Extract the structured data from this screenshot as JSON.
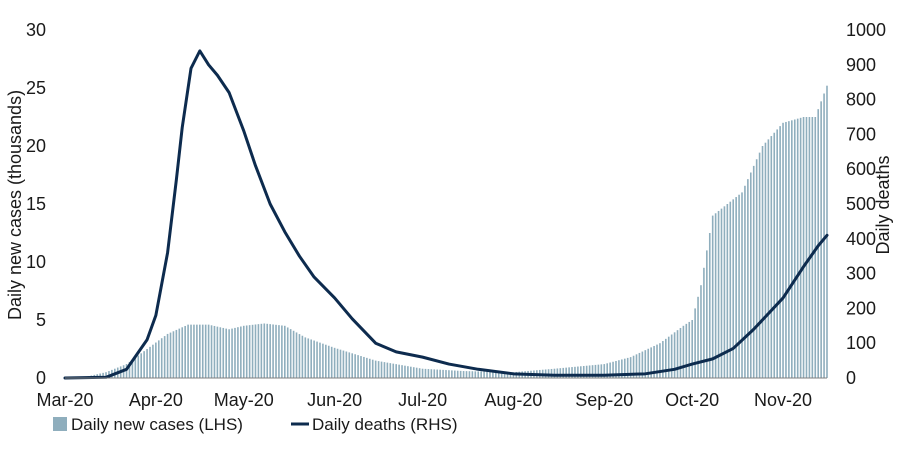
{
  "chart_data": {
    "type": "bar+line",
    "title": "",
    "x_tick_labels": [
      "Mar-20",
      "Apr-20",
      "May-20",
      "Jun-20",
      "Jul-20",
      "Aug-20",
      "Sep-20",
      "Oct-20",
      "Nov-20"
    ],
    "y_left": {
      "label": "Daily new cases (thousands)",
      "range": [
        0,
        30
      ],
      "ticks": [
        "0",
        "5",
        "10",
        "15",
        "20",
        "25",
        "30"
      ]
    },
    "y_right": {
      "label": "Daily deaths",
      "range": [
        0,
        1000
      ],
      "ticks": [
        "0",
        "100",
        "200",
        "300",
        "400",
        "500",
        "600",
        "700",
        "800",
        "900",
        "1000"
      ]
    },
    "grid": false,
    "legend_placement": "bottom",
    "series": [
      {
        "name": "Daily new cases (LHS)",
        "kind": "bar",
        "axis": "left",
        "color": "#8faebd",
        "points": [
          [
            "2020-03-01",
            0.0
          ],
          [
            "2020-03-08",
            0.1
          ],
          [
            "2020-03-15",
            0.5
          ],
          [
            "2020-03-22",
            1.2
          ],
          [
            "2020-03-29",
            2.5
          ],
          [
            "2020-04-05",
            3.8
          ],
          [
            "2020-04-12",
            4.6
          ],
          [
            "2020-04-19",
            4.6
          ],
          [
            "2020-04-26",
            4.2
          ],
          [
            "2020-05-01",
            4.5
          ],
          [
            "2020-05-08",
            4.7
          ],
          [
            "2020-05-15",
            4.5
          ],
          [
            "2020-05-22",
            3.5
          ],
          [
            "2020-06-01",
            2.6
          ],
          [
            "2020-06-15",
            1.5
          ],
          [
            "2020-07-01",
            0.8
          ],
          [
            "2020-07-15",
            0.6
          ],
          [
            "2020-08-01",
            0.5
          ],
          [
            "2020-08-15",
            0.8
          ],
          [
            "2020-09-01",
            1.2
          ],
          [
            "2020-09-10",
            1.8
          ],
          [
            "2020-09-20",
            3.0
          ],
          [
            "2020-09-28",
            4.5
          ],
          [
            "2020-10-01",
            5.0
          ],
          [
            "2020-10-04",
            8.0
          ],
          [
            "2020-10-08",
            14.0
          ],
          [
            "2020-10-12",
            14.8
          ],
          [
            "2020-10-18",
            16.0
          ],
          [
            "2020-10-25",
            20.0
          ],
          [
            "2020-11-01",
            22.0
          ],
          [
            "2020-11-08",
            22.5
          ],
          [
            "2020-11-12",
            22.5
          ],
          [
            "2020-11-16",
            25.2
          ]
        ]
      },
      {
        "name": "Daily deaths (RHS)",
        "kind": "line",
        "axis": "right",
        "color": "#0d2b4e",
        "points": [
          [
            "2020-03-01",
            0
          ],
          [
            "2020-03-15",
            2
          ],
          [
            "2020-03-22",
            25
          ],
          [
            "2020-03-29",
            110
          ],
          [
            "2020-04-01",
            180
          ],
          [
            "2020-04-05",
            360
          ],
          [
            "2020-04-08",
            570
          ],
          [
            "2020-04-10",
            720
          ],
          [
            "2020-04-13",
            890
          ],
          [
            "2020-04-16",
            940
          ],
          [
            "2020-04-19",
            900
          ],
          [
            "2020-04-22",
            870
          ],
          [
            "2020-04-26",
            820
          ],
          [
            "2020-05-01",
            710
          ],
          [
            "2020-05-05",
            610
          ],
          [
            "2020-05-10",
            500
          ],
          [
            "2020-05-15",
            420
          ],
          [
            "2020-05-20",
            350
          ],
          [
            "2020-05-25",
            290
          ],
          [
            "2020-06-01",
            230
          ],
          [
            "2020-06-07",
            170
          ],
          [
            "2020-06-15",
            100
          ],
          [
            "2020-06-22",
            75
          ],
          [
            "2020-07-01",
            60
          ],
          [
            "2020-07-10",
            40
          ],
          [
            "2020-07-20",
            25
          ],
          [
            "2020-08-01",
            12
          ],
          [
            "2020-08-15",
            8
          ],
          [
            "2020-09-01",
            8
          ],
          [
            "2020-09-15",
            12
          ],
          [
            "2020-09-25",
            25
          ],
          [
            "2020-10-01",
            40
          ],
          [
            "2020-10-08",
            55
          ],
          [
            "2020-10-15",
            85
          ],
          [
            "2020-10-22",
            140
          ],
          [
            "2020-11-01",
            230
          ],
          [
            "2020-11-08",
            320
          ],
          [
            "2020-11-13",
            380
          ],
          [
            "2020-11-16",
            410
          ]
        ]
      }
    ]
  }
}
